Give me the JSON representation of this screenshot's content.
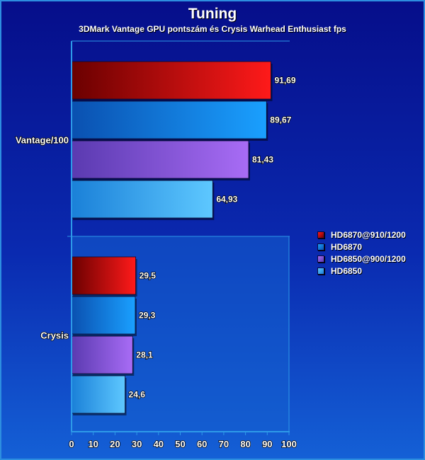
{
  "title": "Tuning",
  "subtitle": "3DMark Vantage GPU pontszám és Crysis Warhead Enthusiast fps",
  "colors": {
    "series": [
      {
        "dark": "#6a0000",
        "light": "#ff1a1a",
        "swatch": "#e01010"
      },
      {
        "dark": "#0a50b0",
        "light": "#1aa0ff",
        "swatch": "#1c88f0"
      },
      {
        "dark": "#5a3ab0",
        "light": "#a86cf5",
        "swatch": "#8a55e6"
      },
      {
        "dark": "#1a80d8",
        "light": "#5ec8ff",
        "swatch": "#3aa8f0"
      }
    ],
    "axis": "#2d9ae8",
    "lower_panel": "#1460d0"
  },
  "chart_data": {
    "type": "bar",
    "orientation": "horizontal",
    "categories": [
      "Vantage/100",
      "Crysis"
    ],
    "series": [
      {
        "name": "HD6870@910/1200",
        "values": [
          91.69,
          29.5
        ],
        "labels": [
          "91,69",
          "29,5"
        ]
      },
      {
        "name": "HD6870",
        "values": [
          89.67,
          29.3
        ],
        "labels": [
          "89,67",
          "29,3"
        ]
      },
      {
        "name": "HD6850@900/1200",
        "values": [
          81.43,
          28.1
        ],
        "labels": [
          "81,43",
          "28,1"
        ]
      },
      {
        "name": "HD6850",
        "values": [
          64.93,
          24.6
        ],
        "labels": [
          "64,93",
          "24,6"
        ]
      }
    ],
    "x_ticks": [
      0,
      10,
      20,
      30,
      40,
      50,
      60,
      70,
      80,
      90,
      100
    ],
    "xlim": [
      0,
      100
    ],
    "legend_position": "right",
    "grid": false
  }
}
